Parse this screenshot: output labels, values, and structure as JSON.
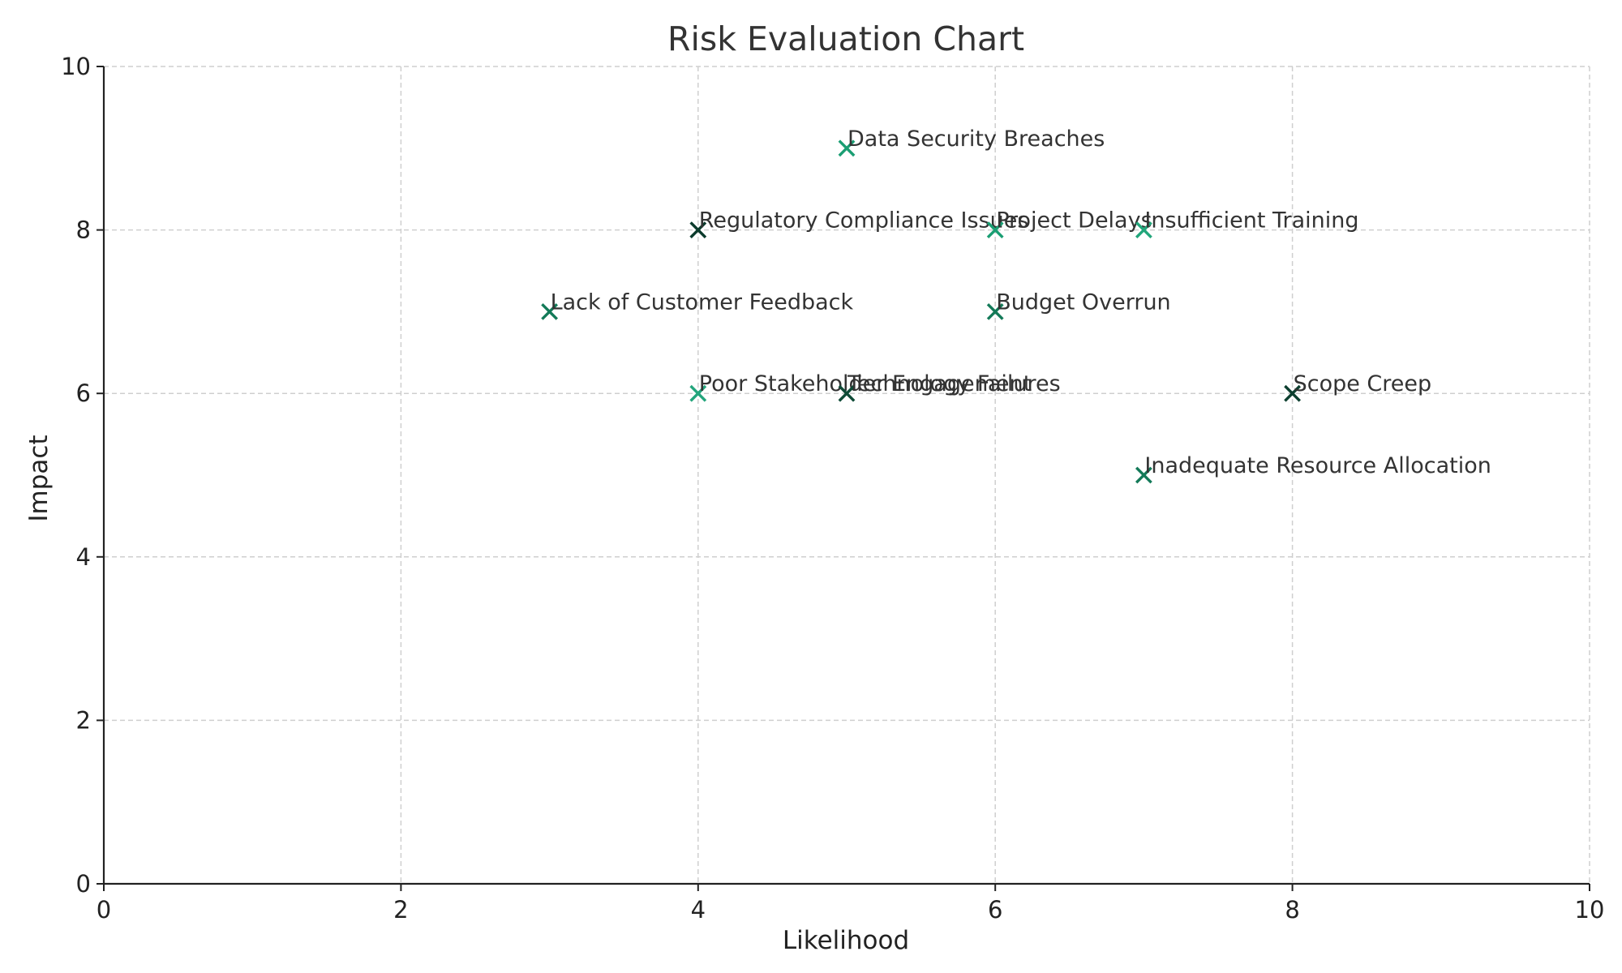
{
  "chart_data": {
    "type": "scatter",
    "title": "Risk Evaluation Chart",
    "xlabel": "Likelihood",
    "ylabel": "Impact",
    "xlim": [
      0,
      10
    ],
    "ylim": [
      0,
      10
    ],
    "xticks": [
      0,
      2,
      4,
      6,
      8,
      10
    ],
    "yticks": [
      0,
      2,
      4,
      6,
      8,
      10
    ],
    "grid": true,
    "marker": "x",
    "points": [
      {
        "label": "Data Security Breaches",
        "x": 5,
        "y": 9,
        "color": "#1a9e73"
      },
      {
        "label": "Regulatory Compliance Issues",
        "x": 4,
        "y": 8,
        "color": "#0b3b2c"
      },
      {
        "label": "Project Delays",
        "x": 6,
        "y": 8,
        "color": "#1a9e73"
      },
      {
        "label": "Insufficient Training",
        "x": 7,
        "y": 8,
        "color": "#22a67b"
      },
      {
        "label": "Lack of Customer Feedback",
        "x": 3,
        "y": 7,
        "color": "#127a58"
      },
      {
        "label": "Budget Overrun",
        "x": 6,
        "y": 7,
        "color": "#137a58"
      },
      {
        "label": "Poor Stakeholder Engagement",
        "x": 4,
        "y": 6,
        "color": "#23a57c"
      },
      {
        "label": "Technology Failures",
        "x": 5,
        "y": 6,
        "color": "#0e4a36"
      },
      {
        "label": "Scope Creep",
        "x": 8,
        "y": 6,
        "color": "#0d3f2f"
      },
      {
        "label": "Inadequate Resource Allocation",
        "x": 7,
        "y": 5,
        "color": "#147a59"
      }
    ]
  }
}
